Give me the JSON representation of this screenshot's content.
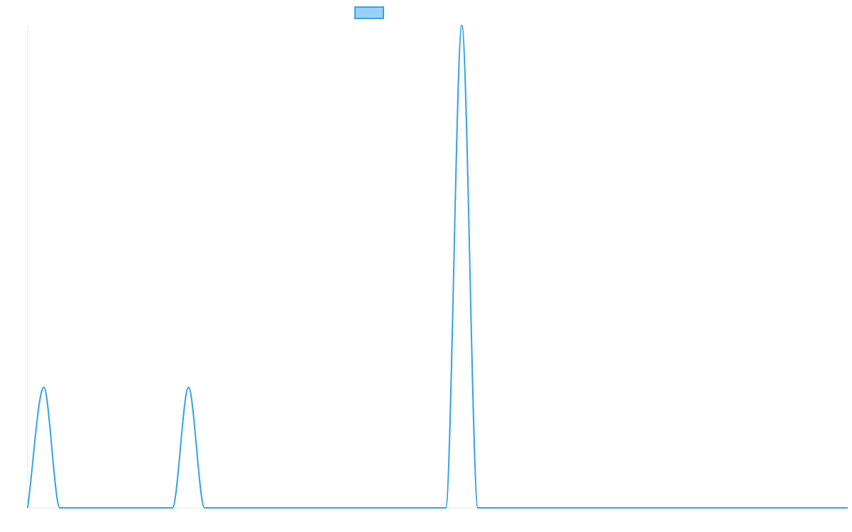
{
  "chart_data": {
    "type": "line",
    "title": "",
    "xlabel": "",
    "ylabel": "",
    "x": [
      0,
      1,
      2,
      3,
      4,
      5,
      6,
      7,
      8,
      9,
      10,
      11,
      12,
      13,
      14,
      15,
      16,
      17,
      18,
      19,
      20,
      21,
      22,
      23,
      24,
      25,
      26,
      27,
      28,
      29,
      30,
      31,
      32,
      33,
      34,
      35,
      36,
      37,
      38,
      39,
      40,
      41,
      42,
      43,
      44,
      45,
      46,
      47,
      48,
      49,
      50,
      51
    ],
    "series": [
      {
        "values": [
          0,
          1,
          0,
          0,
          0,
          0,
          0,
          0,
          0,
          0,
          1,
          0,
          0,
          0,
          0,
          0,
          0,
          0,
          0,
          0,
          0,
          0,
          0,
          0,
          0,
          0,
          0,
          4,
          0,
          0,
          0,
          0,
          0,
          0,
          0,
          0,
          0,
          0,
          0,
          0,
          0,
          0,
          0,
          0,
          0,
          0,
          0,
          0,
          0,
          0,
          0,
          0
        ],
        "color": "#36a2eb",
        "fill": "#9ad0f5"
      }
    ],
    "xlim": [
      0,
      51
    ],
    "ylim": [
      0,
      4
    ],
    "grid": false,
    "legend": "top-center"
  }
}
